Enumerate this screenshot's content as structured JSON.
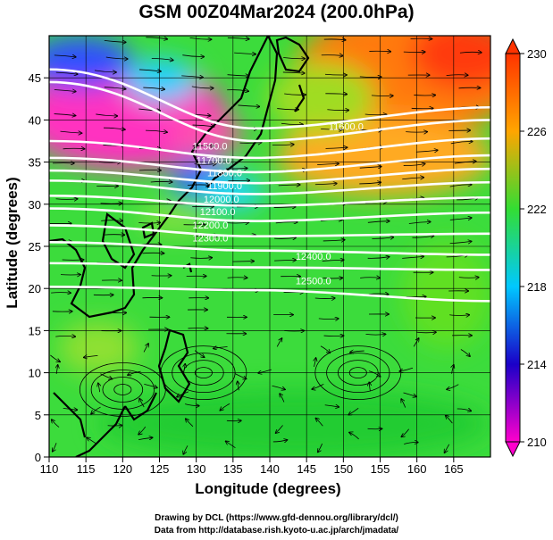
{
  "title": "GSM 00Z04Mar2024 (200.0hPa)",
  "x_axis": {
    "label": "Longitude (degrees)",
    "min": 110,
    "max": 170,
    "ticks": [
      110,
      115,
      120,
      125,
      130,
      135,
      140,
      145,
      150,
      155,
      160,
      165
    ]
  },
  "y_axis": {
    "label": "Latitude  (degrees)",
    "min": 0,
    "max": 50,
    "ticks": [
      0,
      5,
      10,
      15,
      20,
      25,
      30,
      35,
      40,
      45
    ]
  },
  "colorbar": {
    "min": 210,
    "max": 230,
    "ticks": [
      210,
      214,
      218,
      222,
      226,
      230
    ],
    "colors": [
      "#ff00cc",
      "#1a00c8",
      "#00c8ff",
      "#33dd33",
      "#ffa500",
      "#ff3300"
    ]
  },
  "contours": [
    {
      "label": "11500.0",
      "lat_west": 37.5,
      "lat_mid": 35.5,
      "lat_east": 37.8
    },
    {
      "label": "11700.0",
      "lat_west": 35.5,
      "lat_mid": 33.8,
      "lat_east": 35.8
    },
    {
      "label": "11800.0",
      "lat_west": 34.0,
      "lat_mid": 32.5,
      "lat_east": 34.2
    },
    {
      "label": "11900.0",
      "lat_west": 32.8,
      "lat_mid": 31.2,
      "lat_east": 32.6
    },
    {
      "label": "12000.0",
      "lat_west": 31.0,
      "lat_mid": 29.8,
      "lat_east": 30.8
    },
    {
      "label": "12100.0",
      "lat_west": 29.5,
      "lat_mid": 28.0,
      "lat_east": 29.0
    },
    {
      "label": "12200.0",
      "lat_west": 27.5,
      "lat_mid": 26.2,
      "lat_east": 26.5
    },
    {
      "label": "12300.0",
      "lat_west": 25.5,
      "lat_mid": 24.5,
      "lat_east": 24.0
    },
    {
      "label": "12400.0",
      "lat_west": 23.0,
      "lat_mid": 22.5,
      "lat_east": 22.2
    },
    {
      "label": "12500.0",
      "lat_west": 20.2,
      "lat_mid": 19.8,
      "lat_east": 18.5
    }
  ],
  "north_contours": [
    {
      "label": "11600.0",
      "lat_west": 44.5,
      "lat_mid": 37.5,
      "lat_east": 40.0
    },
    {
      "label": "",
      "lat_west": 46.0,
      "lat_mid": 39.0,
      "lat_east": 41.5
    }
  ],
  "contour_labels": [
    {
      "text": "11500.0",
      "lon": 129.5,
      "lat": 36.5
    },
    {
      "text": "11700.0",
      "lon": 130.0,
      "lat": 34.8
    },
    {
      "text": "11800.0",
      "lon": 131.5,
      "lat": 33.3
    },
    {
      "text": "11900.0",
      "lon": 131.5,
      "lat": 31.8
    },
    {
      "text": "12000.0",
      "lon": 131.0,
      "lat": 30.2
    },
    {
      "text": "12100.0",
      "lon": 130.5,
      "lat": 28.7
    },
    {
      "text": "12200.0",
      "lon": 129.5,
      "lat": 27.1
    },
    {
      "text": "12300.0",
      "lon": 129.5,
      "lat": 25.6
    },
    {
      "text": "12400.0",
      "lon": 143.5,
      "lat": 23.4
    },
    {
      "text": "12500.0",
      "lon": 143.5,
      "lat": 20.5
    },
    {
      "text": "11600.0",
      "lon": 148.0,
      "lat": 38.8
    }
  ],
  "credits": [
    "Drawing by DCL (https://www.gfd-dennou.org/library/dcl/)",
    "Data from http://database.rish.kyoto-u.ac.jp/arch/jmadata/"
  ]
}
